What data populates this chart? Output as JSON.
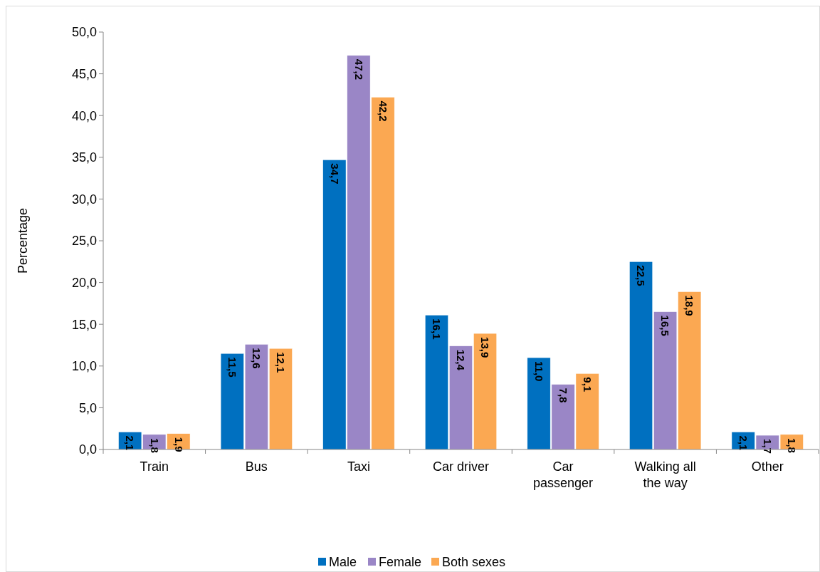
{
  "chart_data": {
    "type": "bar",
    "ylabel": "Percentage",
    "categories": [
      "Train",
      "Bus",
      "Taxi",
      "Car driver",
      "Car passenger",
      "Walking all the way",
      "Other"
    ],
    "series": [
      {
        "name": "Male",
        "color": "#0070c0",
        "values": [
          2.1,
          11.5,
          34.7,
          16.1,
          11.0,
          22.5,
          2.1
        ],
        "value_labels": [
          "2,1",
          "11,5",
          "34,7",
          "16,1",
          "11,0",
          "22,5",
          "2,1"
        ]
      },
      {
        "name": "Female",
        "color": "#9a86c6",
        "values": [
          1.8,
          12.6,
          47.2,
          12.4,
          7.8,
          16.5,
          1.7
        ],
        "value_labels": [
          "1,8",
          "12,6",
          "47,2",
          "12,4",
          "7,8",
          "16,5",
          "1,7"
        ]
      },
      {
        "name": "Both sexes",
        "color": "#fba852",
        "values": [
          1.9,
          12.1,
          42.2,
          13.9,
          9.1,
          18.9,
          1.8
        ],
        "value_labels": [
          "1,9",
          "12,1",
          "42,2",
          "13,9",
          "9,1",
          "18,9",
          "1,8"
        ]
      }
    ],
    "ylim": [
      0,
      50
    ],
    "yticks": [
      {
        "value": 0,
        "label": "0,0"
      },
      {
        "value": 5,
        "label": "5,0"
      },
      {
        "value": 10,
        "label": "10,0"
      },
      {
        "value": 15,
        "label": "15,0"
      },
      {
        "value": 20,
        "label": "20,0"
      },
      {
        "value": 25,
        "label": "25,0"
      },
      {
        "value": 30,
        "label": "30,0"
      },
      {
        "value": 35,
        "label": "35,0"
      },
      {
        "value": 40,
        "label": "40,0"
      },
      {
        "value": 45,
        "label": "45,0"
      },
      {
        "value": 50,
        "label": "50,0"
      }
    ],
    "grid": false,
    "legend": "bottom"
  }
}
